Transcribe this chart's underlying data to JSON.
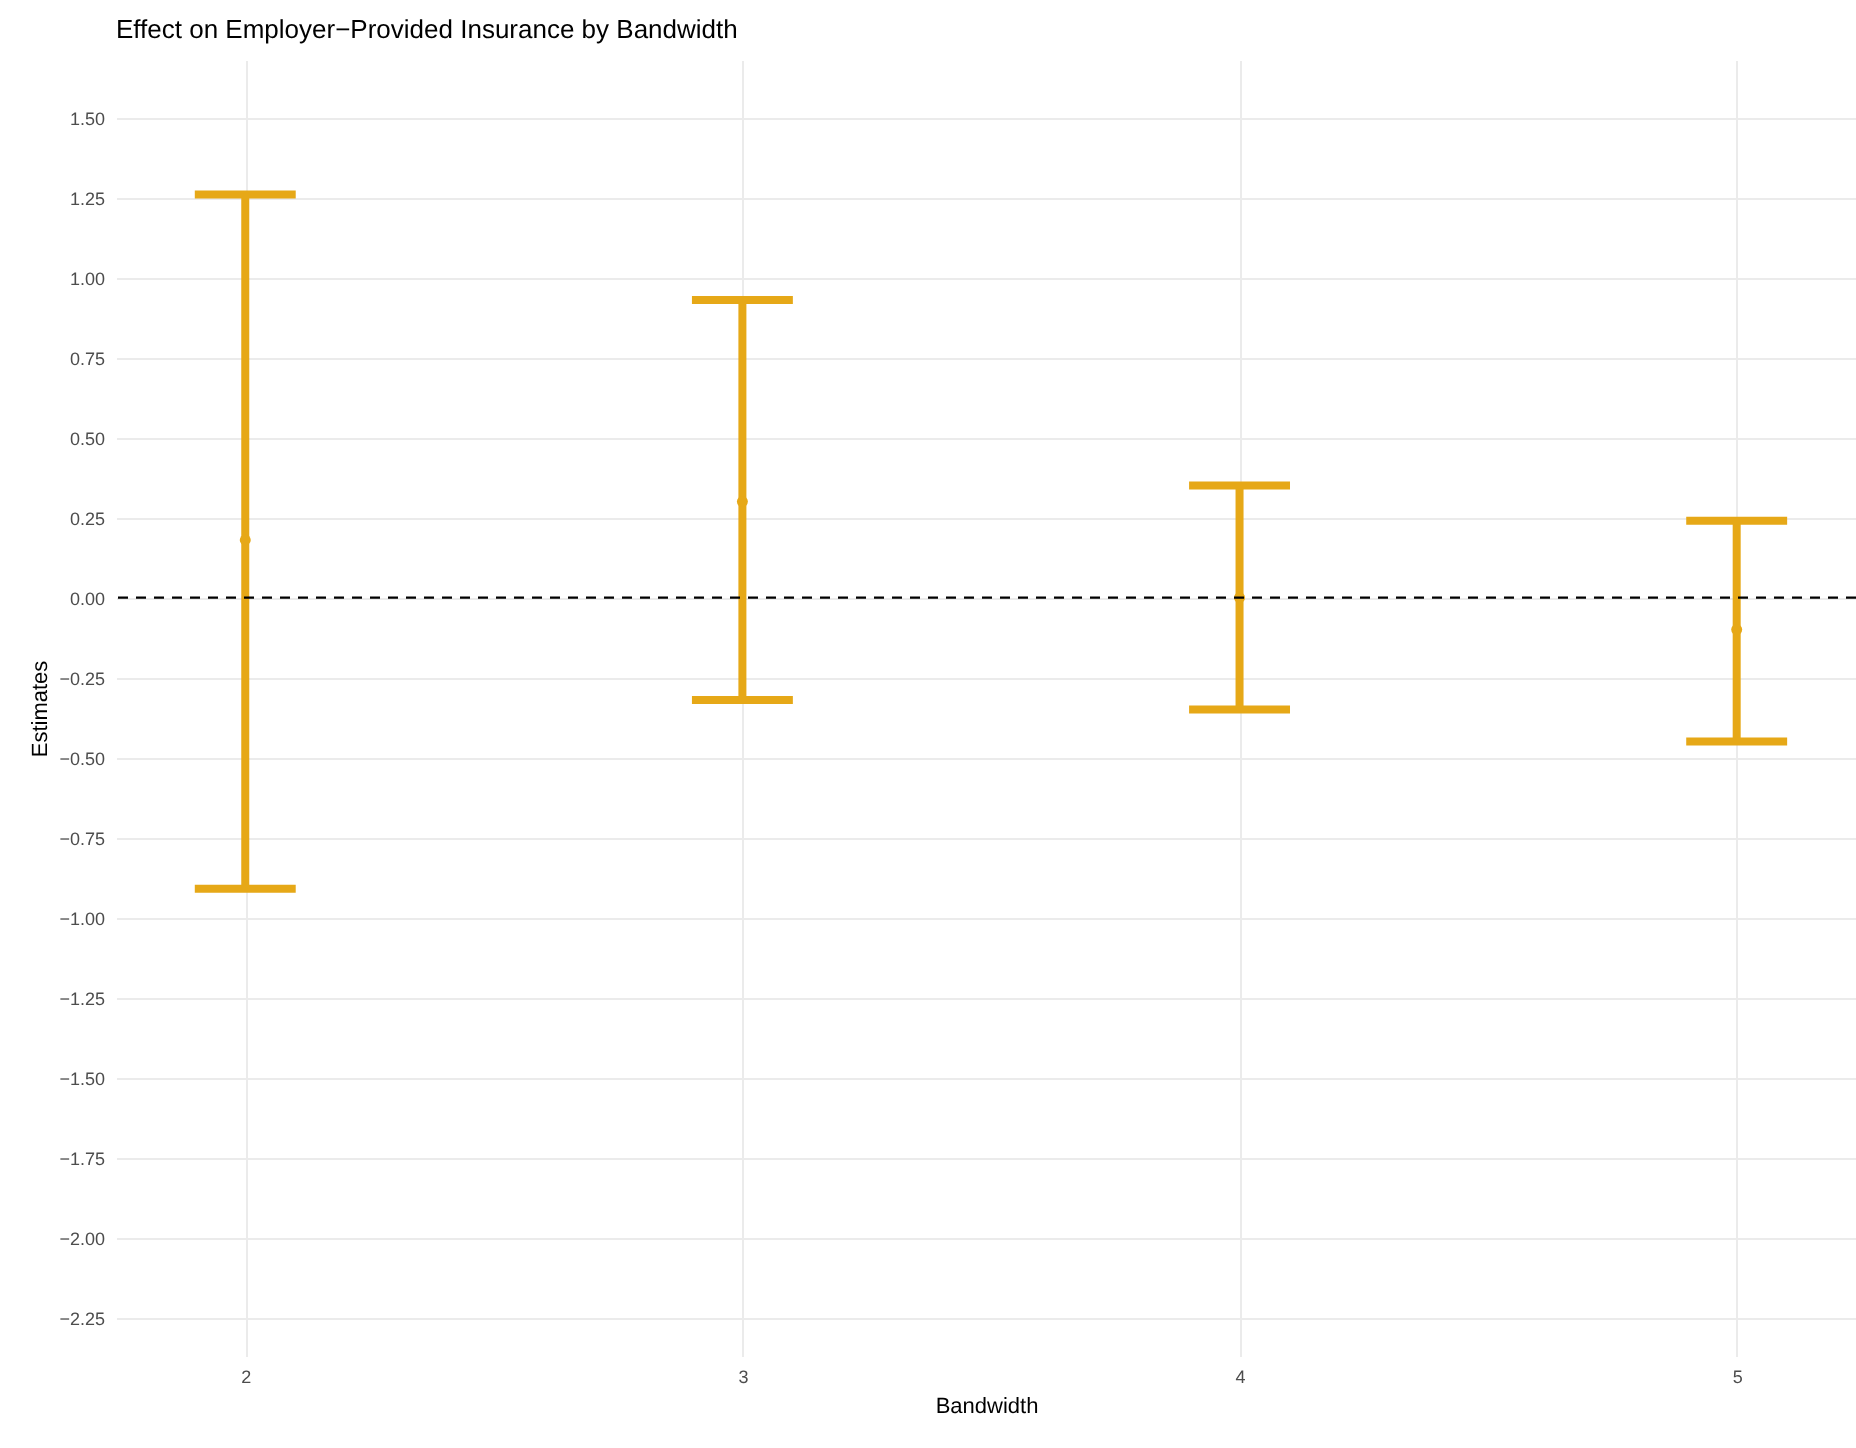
{
  "chart_data": {
    "type": "scatter",
    "title": "Effect on Employer−Provided Insurance by Bandwidth",
    "xlabel": "Bandwidth",
    "ylabel": "Estimates",
    "x": [
      2,
      3,
      4,
      5
    ],
    "series": [
      {
        "color": "#e6a817",
        "values": [
          0.18,
          0.3,
          0.0,
          -0.1
        ],
        "errors": [
          [
            -0.91,
            1.26
          ],
          [
            -0.32,
            0.93
          ],
          [
            -0.35,
            0.35
          ],
          [
            -0.45,
            0.24
          ]
        ]
      }
    ],
    "xlim": [
      1.74,
      5.24
    ],
    "xticks": [
      2,
      3,
      4,
      5
    ],
    "ylim": [
      -2.37,
      1.68
    ],
    "yticks": [
      {
        "value": -2.25,
        "label": "−2.25"
      },
      {
        "value": -2,
        "label": "−2.00"
      },
      {
        "value": -1.75,
        "label": "−1.75"
      },
      {
        "value": -1.5,
        "label": "−1.50"
      },
      {
        "value": -1.25,
        "label": "−1.25"
      },
      {
        "value": -1,
        "label": "−1.00"
      },
      {
        "value": -0.75,
        "label": "−0.75"
      },
      {
        "value": -0.5,
        "label": "−0.50"
      },
      {
        "value": -0.25,
        "label": "−0.25"
      },
      {
        "value": 0,
        "label": "0.00"
      },
      {
        "value": 0.25,
        "label": "0.25"
      },
      {
        "value": 0.5,
        "label": "0.50"
      },
      {
        "value": 0.75,
        "label": "0.75"
      },
      {
        "value": 1,
        "label": "1.00"
      },
      {
        "value": 1.25,
        "label": "1.25"
      },
      {
        "value": 1.5,
        "label": "1.50"
      }
    ],
    "ref_lines": [
      {
        "axis": "y",
        "value": 0,
        "color": "#000000",
        "line_style": "dashed"
      }
    ],
    "grid": true,
    "marker": "circle"
  }
}
